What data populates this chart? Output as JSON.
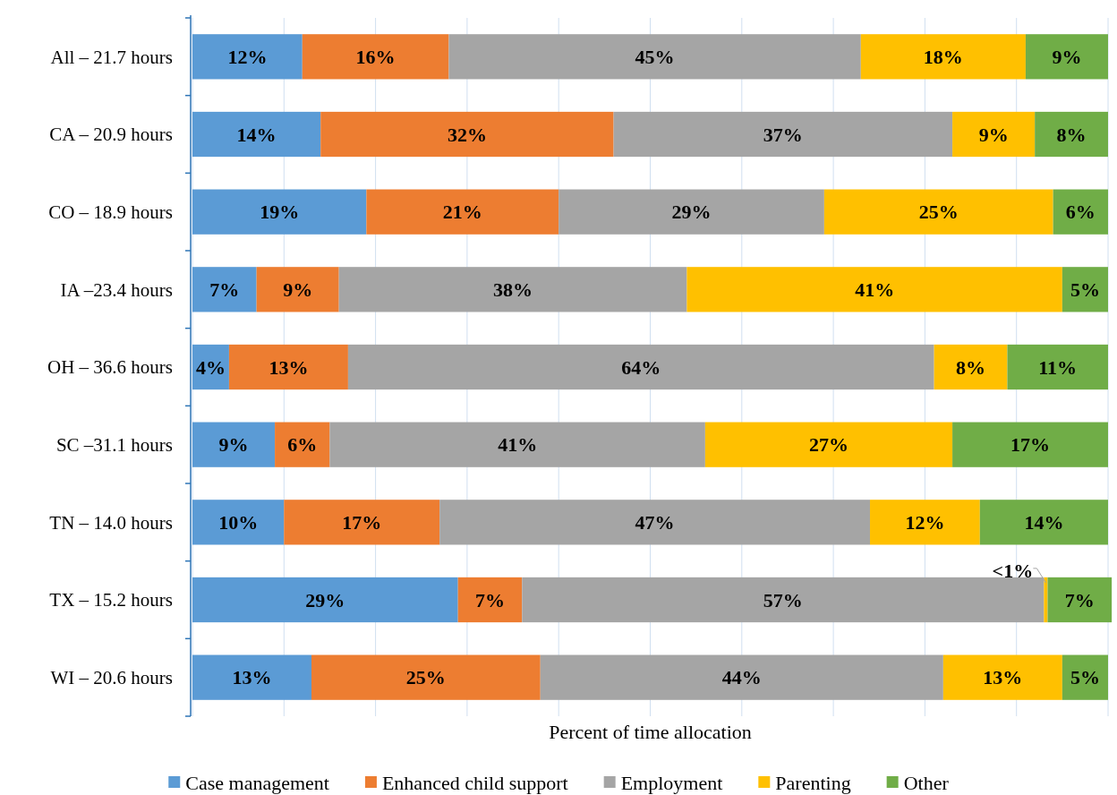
{
  "chart_data": {
    "type": "bar",
    "orientation": "horizontal",
    "stacked": true,
    "xlabel": "Percent of time allocation",
    "categories": [
      "All – 21.7 hours",
      "CA – 20.9 hours",
      "CO – 18.9 hours",
      "IA –23.4 hours",
      "OH – 36.6 hours",
      "SC –31.1 hours",
      "TN – 14.0 hours",
      "TX – 15.2 hours",
      "WI – 20.6 hours"
    ],
    "xlim": [
      0,
      100
    ],
    "xticks": [
      {
        "value": 0,
        "label": null
      },
      {
        "value": 10,
        "label": null
      },
      {
        "value": 20,
        "label": null
      },
      {
        "value": 30,
        "label": null
      },
      {
        "value": 40,
        "label": null
      },
      {
        "value": 50,
        "label": null
      },
      {
        "value": 60,
        "label": null
      },
      {
        "value": 70,
        "label": null
      },
      {
        "value": 80,
        "label": null
      },
      {
        "value": 90,
        "label": null
      },
      {
        "value": 100,
        "label": null
      }
    ],
    "tick_labels": "y",
    "grid": "x",
    "legend": "bottom",
    "series": [
      {
        "name": "Case management",
        "color": "#5b9bd5",
        "values": [
          12,
          14,
          19,
          7,
          4,
          9,
          10,
          29,
          13
        ],
        "value_labels": [
          "12%",
          "14%",
          "19%",
          "7%",
          "4%",
          "9%",
          "10%",
          "29%",
          "13%"
        ]
      },
      {
        "name": "Enhanced child support",
        "color": "#ed7d31",
        "values": [
          16,
          32,
          21,
          9,
          13,
          6,
          17,
          7,
          25
        ],
        "value_labels": [
          "16%",
          "32%",
          "21%",
          "9%",
          "13%",
          "6%",
          "17%",
          "7%",
          "25%"
        ]
      },
      {
        "name": "Employment",
        "color": "#a5a5a5",
        "values": [
          45,
          37,
          29,
          38,
          64,
          41,
          47,
          57,
          44
        ],
        "value_labels": [
          "45%",
          "37%",
          "29%",
          "38%",
          "64%",
          "41%",
          "47%",
          "57%",
          "44%"
        ]
      },
      {
        "name": "Parenting",
        "color": "#ffc000",
        "values": [
          18,
          9,
          25,
          41,
          8,
          27,
          12,
          0.4,
          13
        ],
        "value_labels": [
          "18%",
          "9%",
          "25%",
          "41%",
          "8%",
          "27%",
          "12%",
          "<1%",
          "13%"
        ]
      },
      {
        "name": "Other",
        "color": "#70ad47",
        "values": [
          9,
          8,
          6,
          5,
          11,
          17,
          14,
          7,
          5
        ],
        "value_labels": [
          "9%",
          "8%",
          "6%",
          "5%",
          "11%",
          "17%",
          "14%",
          "7%",
          "5%"
        ]
      }
    ]
  }
}
